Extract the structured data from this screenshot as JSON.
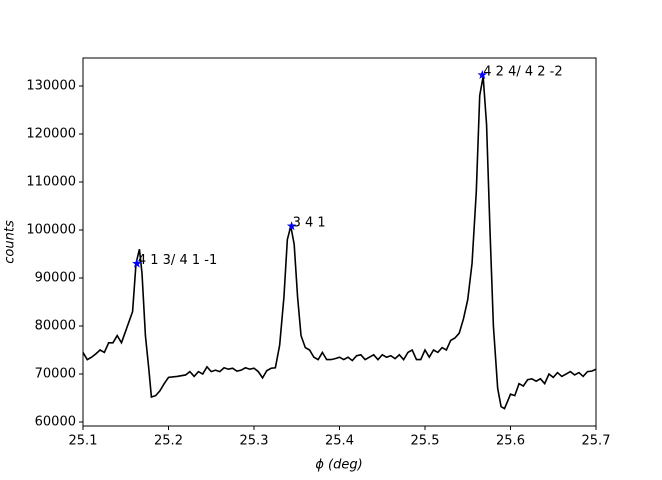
{
  "chart_data": {
    "type": "line",
    "xlabel": "ϕ (deg)",
    "ylabel": "counts",
    "xlim": [
      25.1,
      25.7
    ],
    "xticks": [
      25.1,
      25.2,
      25.3,
      25.4,
      25.5,
      25.6,
      25.7
    ],
    "ylim": [
      59170,
      135830
    ],
    "yticks": [
      60000,
      70000,
      80000,
      90000,
      100000,
      110000,
      120000,
      130000
    ],
    "x": [
      25.1,
      25.105,
      25.11,
      25.115,
      25.12,
      25.125,
      25.13,
      25.135,
      25.14,
      25.145,
      25.15,
      25.155,
      25.158,
      25.162,
      25.166,
      25.169,
      25.173,
      25.177,
      25.18,
      25.185,
      25.19,
      25.195,
      25.2,
      25.21,
      25.22,
      25.225,
      25.23,
      25.235,
      25.24,
      25.245,
      25.25,
      25.255,
      25.26,
      25.265,
      25.27,
      25.275,
      25.28,
      25.285,
      25.29,
      25.295,
      25.3,
      25.305,
      25.31,
      25.315,
      25.32,
      25.325,
      25.33,
      25.335,
      25.339,
      25.343,
      25.347,
      25.351,
      25.355,
      25.36,
      25.365,
      25.37,
      25.375,
      25.38,
      25.385,
      25.39,
      25.395,
      25.4,
      25.405,
      25.41,
      25.415,
      25.42,
      25.425,
      25.43,
      25.435,
      25.44,
      25.445,
      25.45,
      25.455,
      25.46,
      25.465,
      25.47,
      25.475,
      25.48,
      25.485,
      25.49,
      25.495,
      25.5,
      25.505,
      25.51,
      25.515,
      25.52,
      25.525,
      25.53,
      25.535,
      25.54,
      25.545,
      25.55,
      25.555,
      25.56,
      25.564,
      25.568,
      25.572,
      25.576,
      25.58,
      25.585,
      25.589,
      25.593,
      25.597,
      25.6,
      25.605,
      25.61,
      25.615,
      25.62,
      25.625,
      25.63,
      25.635,
      25.64,
      25.645,
      25.65,
      25.655,
      25.66,
      25.665,
      25.67,
      25.675,
      25.68,
      25.685,
      25.69,
      25.695,
      25.7
    ],
    "series": [
      {
        "color": "#000000",
        "values": [
          74500,
          73000,
          73500,
          74200,
          75000,
          74500,
          76500,
          76500,
          78000,
          76500,
          79000,
          81500,
          83000,
          93000,
          96000,
          91000,
          78000,
          71000,
          65200,
          65500,
          66500,
          68000,
          69300,
          69500,
          69800,
          70500,
          69500,
          70500,
          70000,
          71500,
          70500,
          70800,
          70500,
          71300,
          71000,
          71200,
          70600,
          70800,
          71300,
          71000,
          71200,
          70500,
          69200,
          70700,
          71200,
          71300,
          76000,
          86000,
          98000,
          100800,
          97000,
          86000,
          78000,
          75500,
          75000,
          73500,
          73000,
          74500,
          73000,
          73000,
          73200,
          73500,
          73000,
          73500,
          72800,
          73800,
          74000,
          73000,
          73500,
          74000,
          73000,
          74000,
          73500,
          73800,
          73200,
          74000,
          73000,
          74500,
          75000,
          73000,
          73000,
          75000,
          73500,
          75000,
          74500,
          75500,
          75000,
          77000,
          77500,
          78500,
          81500,
          85500,
          93000,
          108000,
          128000,
          132000,
          122000,
          100000,
          80000,
          67000,
          63200,
          62800,
          64500,
          65800,
          65500,
          68000,
          67500,
          68800,
          69000,
          68500,
          69000,
          68000,
          70000,
          69300,
          70300,
          69500,
          70000,
          70500,
          69800,
          70300,
          69500,
          70500,
          70600,
          71000
        ]
      }
    ],
    "annotations": [
      {
        "label": "4 1 3/ 4 1 -1",
        "x": 25.163,
        "y": 93000,
        "color": "#ff0000",
        "marker_color": "#0000ff"
      },
      {
        "label": "3 4 1",
        "x": 25.344,
        "y": 100800,
        "color": "#0000ff",
        "marker_color": "#0000ff"
      },
      {
        "label": "4 2 4/ 4 2 -2",
        "x": 25.567,
        "y": 132300,
        "color": "#ff0000",
        "marker_color": "#0000ff"
      }
    ]
  }
}
